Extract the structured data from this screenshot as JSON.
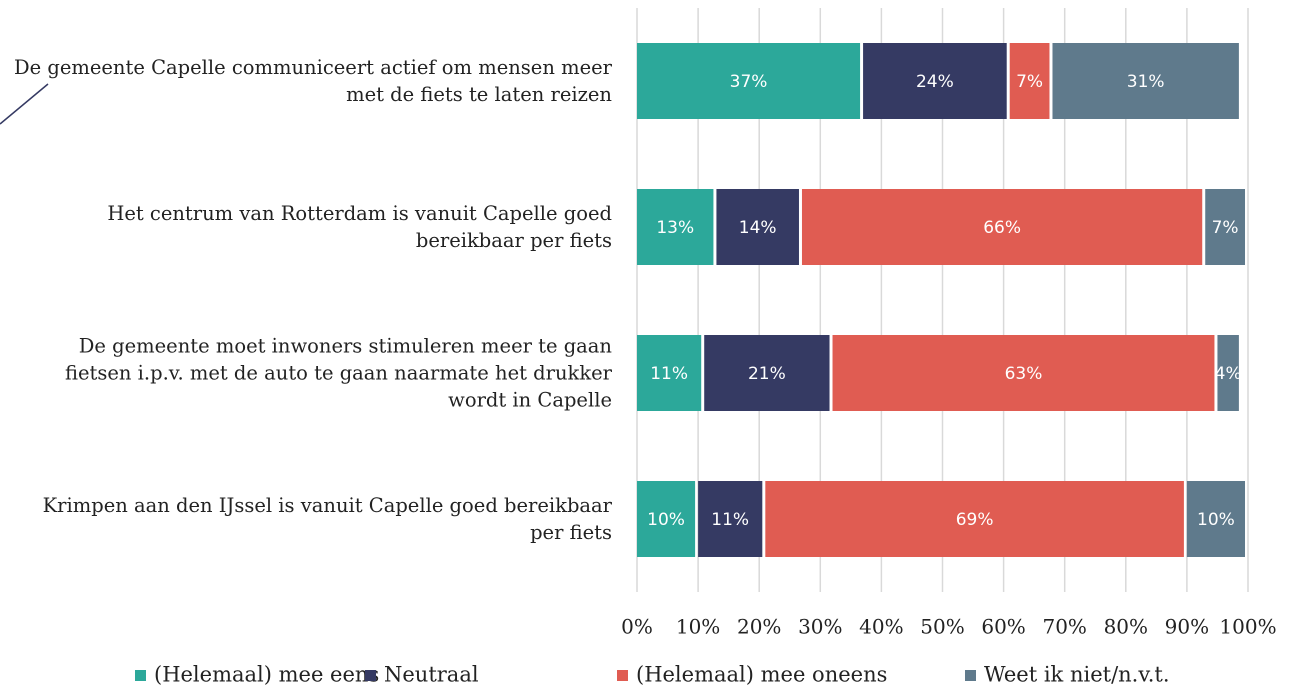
{
  "chart_data": {
    "type": "stacked-barh",
    "categories": [
      "De gemeente Capelle communiceert actief om mensen meer met de fiets te laten reizen",
      "Het centrum van Rotterdam is vanuit Capelle goed bereikbaar per fiets",
      "De gemeente moet inwoners stimuleren meer te gaan fietsen i.p.v. met de auto te gaan naarmate het drukker wordt in Capelle",
      "Krimpen aan den IJssel is vanuit Capelle goed bereikbaar per fiets"
    ],
    "series": [
      {
        "name": "(Helemaal) mee eens",
        "color": "#2ca89a",
        "values": [
          37,
          13,
          11,
          10
        ],
        "value_labels": [
          "37%",
          "13%",
          "11%",
          "10%"
        ]
      },
      {
        "name": "Neutraal",
        "color": "#353a63",
        "values": [
          24,
          14,
          21,
          11
        ],
        "value_labels": [
          "24%",
          "14%",
          "21%",
          "11%"
        ]
      },
      {
        "name": "(Helemaal) mee oneens",
        "color": "#e05c52",
        "values": [
          7,
          66,
          63,
          69
        ],
        "value_labels": [
          "7%",
          "66%",
          "63%",
          "69%"
        ]
      },
      {
        "name": "Weet ik niet/n.v.t.",
        "color": "#5f7a8c",
        "values": [
          31,
          7,
          4,
          10
        ],
        "value_labels": [
          "31%",
          "7%",
          "4%",
          "10%"
        ]
      }
    ],
    "xlim": [
      0,
      100
    ],
    "xticks": [
      {
        "value": 0,
        "label": "0%"
      },
      {
        "value": 10,
        "label": "10%"
      },
      {
        "value": 20,
        "label": "20%"
      },
      {
        "value": 30,
        "label": "30%"
      },
      {
        "value": 40,
        "label": "40%"
      },
      {
        "value": 50,
        "label": "50%"
      },
      {
        "value": 60,
        "label": "60%"
      },
      {
        "value": 70,
        "label": "70%"
      },
      {
        "value": 80,
        "label": "80%"
      },
      {
        "value": 90,
        "label": "90%"
      },
      {
        "value": 100,
        "label": "100%"
      }
    ],
    "grid": true,
    "legend": "bottom"
  }
}
